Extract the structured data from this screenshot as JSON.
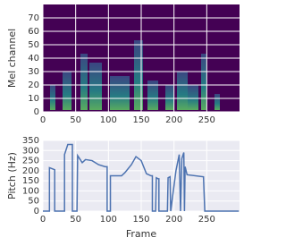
{
  "chart_data": [
    {
      "type": "image",
      "ylabel": "Mel channel",
      "xlim": [
        0,
        300
      ],
      "ylim": [
        0,
        80
      ],
      "xticks": [
        0,
        50,
        100,
        150,
        200,
        250
      ],
      "yticks": [
        0,
        10,
        20,
        30,
        40,
        50,
        60,
        70
      ],
      "grid": true
    },
    {
      "type": "line",
      "xlabel": "Frame",
      "ylabel": "Pitch (Hz)",
      "xlim": [
        0,
        300
      ],
      "ylim": [
        0,
        350
      ],
      "xticks": [
        0,
        50,
        100,
        150,
        200,
        250
      ],
      "yticks": [
        0,
        50,
        100,
        150,
        200,
        250,
        300,
        350
      ],
      "grid": true,
      "series": [
        {
          "color": "#4c72b0",
          "x": [
            0,
            10,
            10,
            14,
            18,
            18,
            33,
            33,
            38,
            45,
            45,
            52,
            53,
            60,
            65,
            75,
            85,
            95,
            98,
            98,
            103,
            103,
            120,
            125,
            135,
            142,
            150,
            158,
            165,
            167,
            167,
            172,
            173,
            176,
            177,
            177,
            190,
            191,
            194,
            195,
            203,
            208,
            210,
            212,
            215,
            216,
            217,
            220,
            245,
            247,
            299
          ],
          "values": [
            0,
            0,
            215,
            210,
            205,
            0,
            0,
            280,
            330,
            330,
            0,
            0,
            275,
            240,
            255,
            250,
            230,
            220,
            220,
            0,
            0,
            175,
            175,
            190,
            230,
            270,
            250,
            185,
            175,
            175,
            0,
            0,
            165,
            160,
            160,
            0,
            0,
            165,
            170,
            0,
            200,
            280,
            0,
            260,
            290,
            0,
            220,
            180,
            170,
            0,
            0
          ]
        }
      ]
    }
  ]
}
